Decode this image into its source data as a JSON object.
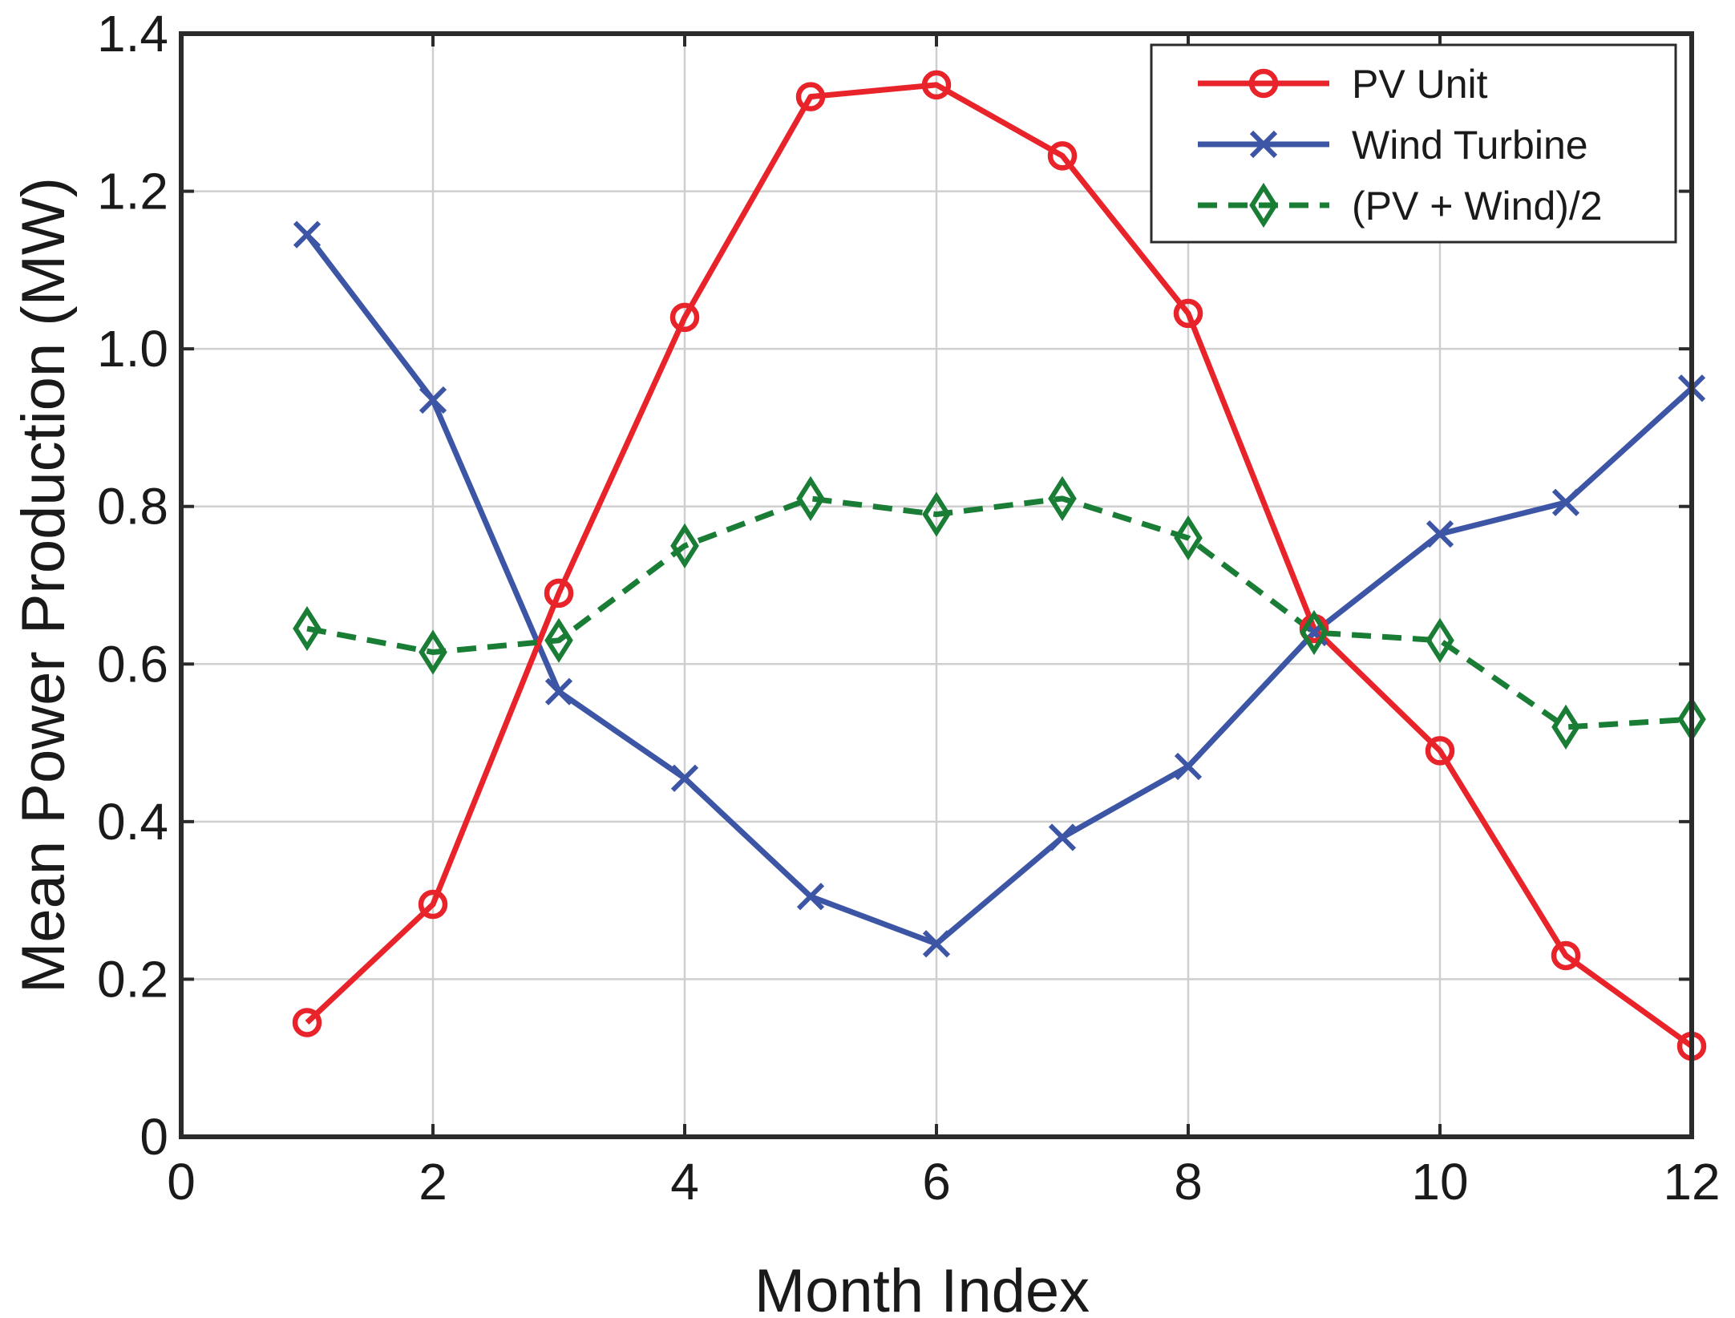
{
  "chart_data": {
    "type": "line",
    "title": "",
    "xlabel": "Month Index",
    "ylabel": "Mean Power Production (MW)",
    "xlim": [
      0,
      12
    ],
    "ylim": [
      0,
      1.4
    ],
    "xticks": [
      0,
      2,
      4,
      6,
      8,
      10,
      12
    ],
    "yticks": [
      0,
      0.2,
      0.4,
      0.6,
      0.8,
      1.0,
      1.2,
      1.4
    ],
    "xtick_labels": [
      "0",
      "2",
      "4",
      "6",
      "8",
      "10",
      "12"
    ],
    "ytick_labels": [
      "0",
      "0.2",
      "0.4",
      "0.6",
      "0.8",
      "1.0",
      "1.2",
      "1.4"
    ],
    "grid": true,
    "legend_position": "top-right",
    "x": [
      1,
      2,
      3,
      4,
      5,
      6,
      7,
      8,
      9,
      10,
      11,
      12
    ],
    "series": [
      {
        "name": "PV Unit",
        "color": "#e8232a",
        "marker": "circle",
        "line_style": "solid",
        "values": [
          0.145,
          0.295,
          0.69,
          1.04,
          1.32,
          1.335,
          1.245,
          1.045,
          0.645,
          0.49,
          0.23,
          0.115
        ]
      },
      {
        "name": "Wind Turbine",
        "color": "#3c55a5",
        "marker": "x",
        "line_style": "solid",
        "values": [
          1.145,
          0.935,
          0.565,
          0.455,
          0.305,
          0.245,
          0.38,
          0.47,
          0.64,
          0.765,
          0.805,
          0.95
        ]
      },
      {
        "name": "(PV + Wind)/2",
        "color": "#1a7d35",
        "marker": "diamond",
        "line_style": "dashed",
        "values": [
          0.645,
          0.615,
          0.63,
          0.75,
          0.81,
          0.79,
          0.81,
          0.76,
          0.64,
          0.63,
          0.52,
          0.53
        ]
      }
    ]
  }
}
